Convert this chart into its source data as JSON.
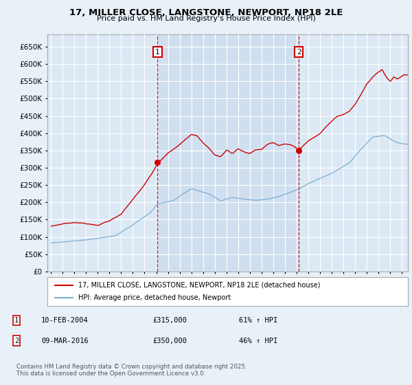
{
  "title": "17, MILLER CLOSE, LANGSTONE, NEWPORT, NP18 2LE",
  "subtitle": "Price paid vs. HM Land Registry's House Price Index (HPI)",
  "background_color": "#e8f0f8",
  "plot_bg_color": "#dce9f5",
  "grid_color": "#ffffff",
  "shade_color": "#ccdcee",
  "ylim": [
    0,
    670000
  ],
  "yticks": [
    0,
    50000,
    100000,
    150000,
    200000,
    250000,
    300000,
    350000,
    400000,
    450000,
    500000,
    550000,
    600000,
    650000
  ],
  "sale1_date": 2004.11,
  "sale1_price": 315000,
  "sale1_label": "1",
  "sale2_date": 2016.19,
  "sale2_price": 350000,
  "sale2_label": "2",
  "legend_line1": "17, MILLER CLOSE, LANGSTONE, NEWPORT, NP18 2LE (detached house)",
  "legend_line2": "HPI: Average price, detached house, Newport",
  "sale_color": "#cc0000",
  "hpi_color": "#7aaed4",
  "annotation_box_color": "#cc0000",
  "dashed_line_color": "#cc0000",
  "footer_text": "Contains HM Land Registry data © Crown copyright and database right 2025.\nThis data is licensed under the Open Government Licence v3.0.",
  "table_row1": [
    "1",
    "10-FEB-2004",
    "£315,000",
    "61% ↑ HPI"
  ],
  "table_row2": [
    "2",
    "09-MAR-2016",
    "£350,000",
    "46% ↑ HPI"
  ]
}
